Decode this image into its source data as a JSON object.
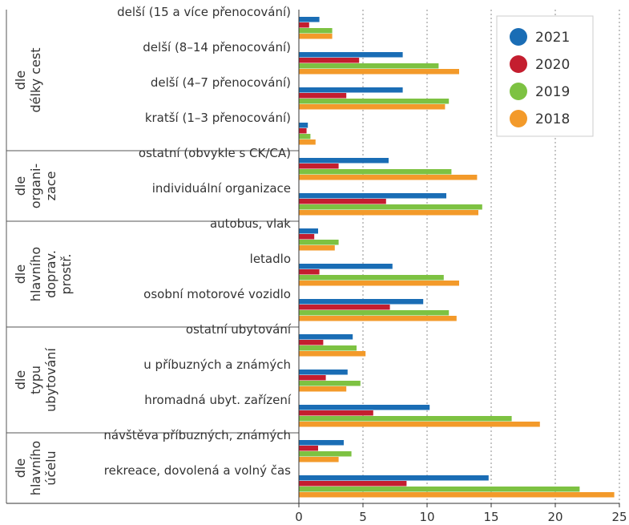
{
  "chart_data": {
    "type": "bar",
    "orientation": "horizontal",
    "xlim": [
      0,
      25
    ],
    "xticks": [
      "0",
      "5",
      "10",
      "15",
      "20",
      "25"
    ],
    "grid": "vertical-dotted",
    "legend_position": "top-right",
    "legend": [
      {
        "name": "2021",
        "color": "#1a6db5"
      },
      {
        "name": "2020",
        "color": "#c41e2f"
      },
      {
        "name": "2019",
        "color": "#7dc242"
      },
      {
        "name": "2018",
        "color": "#f39a2a"
      }
    ],
    "groups": [
      {
        "label_lines": [
          "dle",
          "délky cest"
        ],
        "categories": [
          {
            "label": "delší (15 a více přenocování)",
            "values": [
              1.6,
              0.8,
              2.6,
              2.6
            ]
          },
          {
            "label": "delší (8–14 přenocování)",
            "values": [
              8.1,
              4.7,
              10.9,
              12.5
            ]
          },
          {
            "label": "delší (4–7 přenocování)",
            "values": [
              8.1,
              3.7,
              11.7,
              11.4
            ]
          },
          {
            "label": "kratší (1–3 přenocování)",
            "values": [
              0.7,
              0.6,
              0.9,
              1.3
            ]
          }
        ]
      },
      {
        "label_lines": [
          "dle",
          "organi-",
          "zace"
        ],
        "categories": [
          {
            "label": "ostatní (obvykle s CK/CA)",
            "values": [
              7.0,
              3.1,
              11.9,
              13.9
            ]
          },
          {
            "label": "individuální organizace",
            "values": [
              11.5,
              6.8,
              14.3,
              14.0
            ]
          }
        ]
      },
      {
        "label_lines": [
          "dle",
          "hlavního",
          "doprav.",
          "prostř."
        ],
        "categories": [
          {
            "label": "autobus, vlak",
            "values": [
              1.5,
              1.2,
              3.1,
              2.8
            ]
          },
          {
            "label": "letadlo",
            "values": [
              7.3,
              1.6,
              11.3,
              12.5
            ]
          },
          {
            "label": "osobní motorové vozidlo",
            "values": [
              9.7,
              7.1,
              11.7,
              12.3
            ]
          }
        ]
      },
      {
        "label_lines": [
          "dle",
          "typu",
          "ubytování"
        ],
        "categories": [
          {
            "label": "ostatní ubytování",
            "values": [
              4.2,
              1.9,
              4.5,
              5.2
            ]
          },
          {
            "label": "u příbuzných a známých",
            "values": [
              3.8,
              2.1,
              4.8,
              3.7
            ]
          },
          {
            "label": "hromadná ubyt. zařízení",
            "values": [
              10.2,
              5.8,
              16.6,
              18.8
            ]
          }
        ]
      },
      {
        "label_lines": [
          "dle",
          "hlavního",
          "účelu"
        ],
        "categories": [
          {
            "label": "návštěva příbuzných, známých",
            "values": [
              3.5,
              1.5,
              4.1,
              3.1
            ]
          },
          {
            "label": "rekreace, dovolená a volný čas",
            "values": [
              14.8,
              8.4,
              21.9,
              24.6
            ]
          }
        ]
      }
    ]
  }
}
